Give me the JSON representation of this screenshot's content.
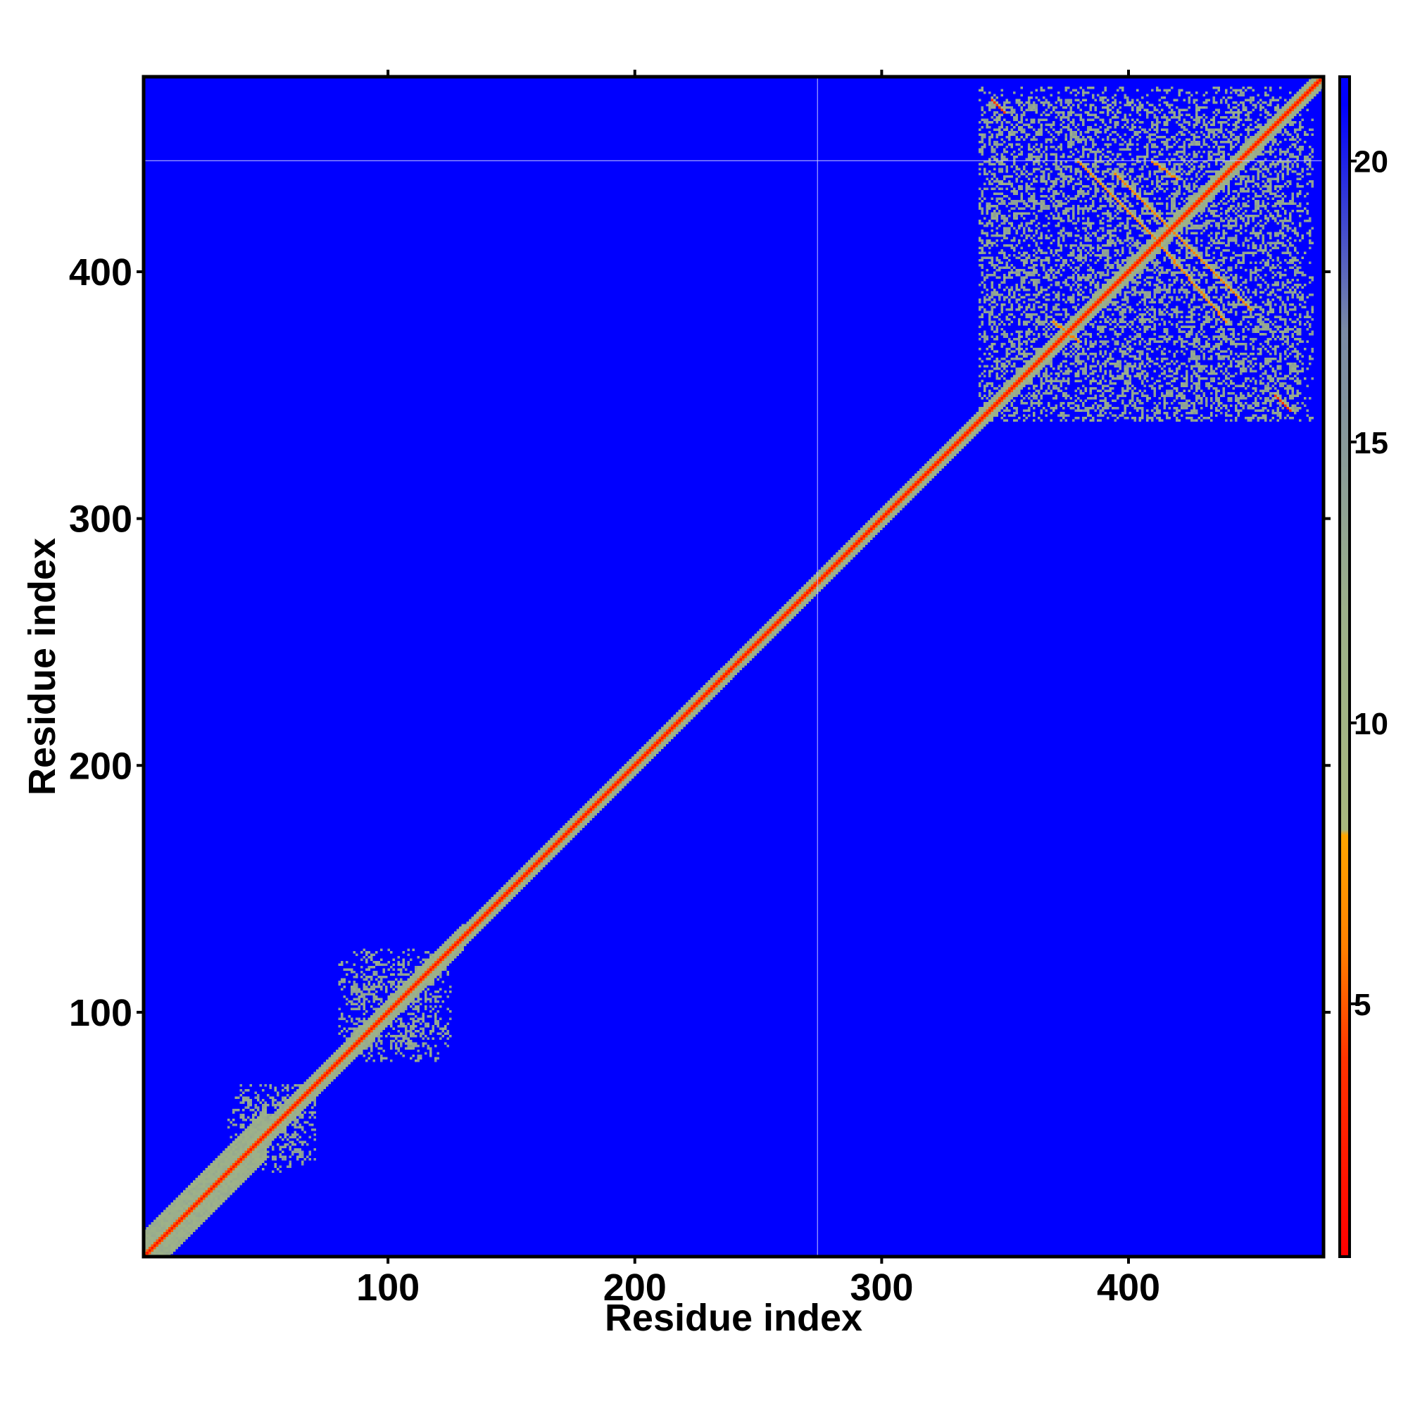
{
  "chart_data": {
    "type": "heatmap",
    "title": "",
    "xlabel": "Residue index",
    "ylabel": "Residue index",
    "xlim": [
      1,
      479
    ],
    "ylim": [
      1,
      479
    ],
    "xticks": [
      100,
      200,
      300,
      400
    ],
    "yticks": [
      100,
      200,
      300,
      400
    ],
    "xtick_labels": [
      "100",
      "200",
      "300",
      "400"
    ],
    "ytick_labels": [
      "100",
      "200",
      "300",
      "400"
    ],
    "grid": false,
    "colorbar": {
      "position": "right",
      "range": [
        0.5,
        21.5
      ],
      "ticks": [
        5,
        10,
        15,
        20
      ],
      "tick_labels": [
        "5",
        "10",
        "15",
        "20"
      ],
      "color_stops": [
        {
          "value": 0.5,
          "color": "#ff0000"
        },
        {
          "value": 4.0,
          "color": "#ff3300"
        },
        {
          "value": 6.0,
          "color": "#ff8000"
        },
        {
          "value": 8.0,
          "color": "#ffa500"
        },
        {
          "value": 8.1,
          "color": "#a8b87f"
        },
        {
          "value": 12.0,
          "color": "#9cb08a"
        },
        {
          "value": 17.0,
          "color": "#7a8aa6"
        },
        {
          "value": 21.0,
          "color": "#0000ff"
        }
      ]
    },
    "background_value": 21,
    "background_color": "#0000ff",
    "reference_lines": {
      "vertical_x": 274,
      "horizontal_y": 445,
      "color": "#c8c8ff"
    },
    "diagonal": {
      "from": 1,
      "to": 479,
      "core_value": 1.5,
      "inner_value": 5,
      "halo_value": 11
    },
    "diagonal_halo_width": [
      {
        "from": 1,
        "to": 50,
        "width": 10
      },
      {
        "from": 50,
        "to": 130,
        "width": 5
      },
      {
        "from": 130,
        "to": 479,
        "width": 4
      }
    ],
    "contact_clusters": [
      {
        "x": [
          35,
          70
        ],
        "y": [
          40,
          65
        ],
        "value": 12
      },
      {
        "x": [
          80,
          125
        ],
        "y": [
          85,
          120
        ],
        "value": 12
      },
      {
        "x": [
          340,
          475
        ],
        "y": [
          340,
          470
        ],
        "value": 12
      }
    ],
    "off_diagonal_contacts": [
      {
        "from": [
          380,
          445
        ],
        "to": [
          410,
          415
        ],
        "value": 6
      },
      {
        "from": [
          410,
          415
        ],
        "to": [
          440,
          380
        ],
        "value": 6
      },
      {
        "from": [
          395,
          440
        ],
        "to": [
          425,
          410
        ],
        "value": 6
      },
      {
        "from": [
          425,
          410
        ],
        "to": [
          450,
          385
        ],
        "value": 6
      },
      {
        "from": [
          410,
          445
        ],
        "to": [
          420,
          438
        ],
        "value": 6
      },
      {
        "from": [
          370,
          380
        ],
        "to": [
          380,
          372
        ],
        "value": 6
      },
      {
        "from": [
          345,
          470
        ],
        "to": [
          350,
          465
        ],
        "value": 4
      },
      {
        "from": [
          460,
          350
        ],
        "to": [
          466,
          344
        ],
        "value": 4
      }
    ]
  }
}
